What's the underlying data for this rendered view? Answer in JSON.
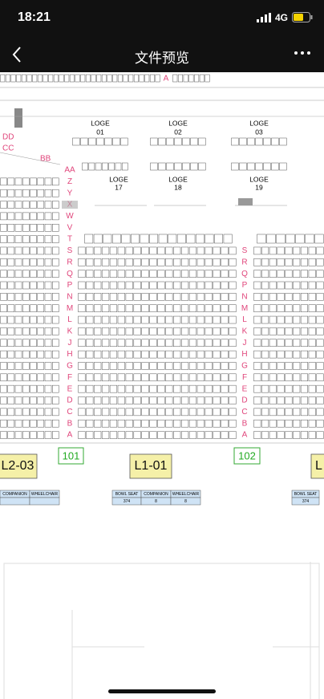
{
  "status": {
    "time": "18:21",
    "network": "4G"
  },
  "nav": {
    "title": "文件预览"
  },
  "plan": {
    "top_row": "A",
    "left_rows": [
      "DD",
      "CC",
      "BB"
    ],
    "loges_upper": [
      [
        "LOGE",
        "01"
      ],
      [
        "LOGE",
        "02"
      ],
      [
        "LOGE",
        "03"
      ]
    ],
    "loges_lower": [
      [
        "LOGE",
        "17"
      ],
      [
        "LOGE",
        "18"
      ],
      [
        "LOGE",
        "19"
      ]
    ],
    "rows_left": [
      "AA",
      "Z",
      "Y",
      "X",
      "W",
      "V",
      "T",
      "S",
      "R",
      "Q",
      "P",
      "N",
      "M",
      "L",
      "K",
      "J",
      "H",
      "G",
      "F",
      "E",
      "D",
      "C",
      "B",
      "A"
    ],
    "rows_center": [
      "S",
      "R",
      "Q",
      "P",
      "N",
      "M",
      "L",
      "K",
      "J",
      "H",
      "G",
      "F",
      "E",
      "D",
      "C",
      "B",
      "A"
    ],
    "sections": [
      "101",
      "102"
    ],
    "zones": [
      "L2-03",
      "L1-01",
      "L"
    ],
    "table_left": [
      "COMPANION",
      "WHEELCHAIR"
    ],
    "table_mid": {
      "header": [
        "BOWL SEAT",
        "COMPANION",
        "WHEELCHAIR"
      ],
      "row": [
        "374",
        "8",
        "8"
      ]
    },
    "table_right": {
      "header": [
        "BOWL SEAT"
      ],
      "row": [
        "374"
      ]
    }
  }
}
